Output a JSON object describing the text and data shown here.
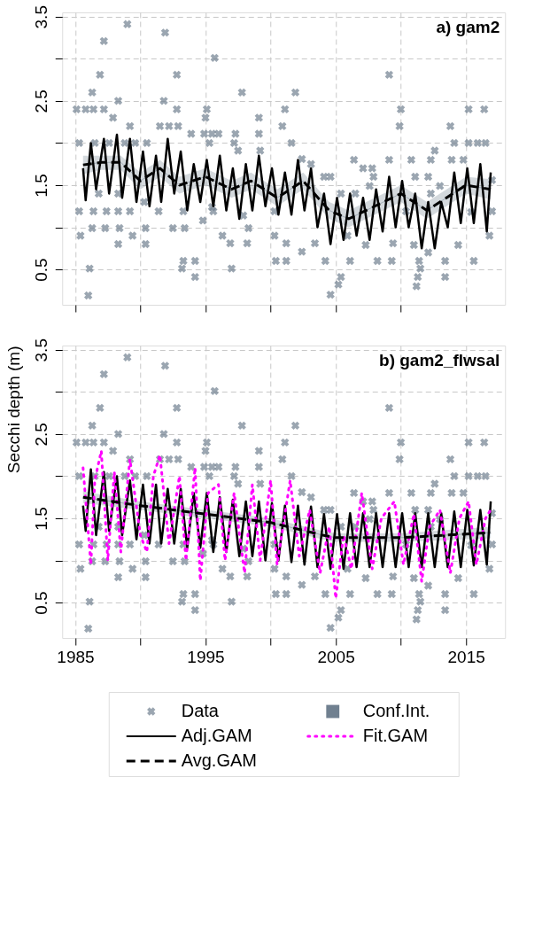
{
  "chart_data": [
    {
      "type": "line",
      "title": "a) gam2",
      "xlim": [
        1984,
        2018
      ],
      "ylim": [
        0.08,
        3.55
      ],
      "xticks": [
        1985,
        {
          "value": 1990,
          "label": null
        },
        1995,
        {
          "value": 2000,
          "label": null
        },
        2005,
        {
          "value": 2010,
          "label": null
        },
        2015
      ],
      "yticks": [
        0.5,
        {
          "value": 1,
          "label": null
        },
        1.5,
        {
          "value": 2,
          "label": null
        },
        2.5,
        {
          "value": 3,
          "label": null
        },
        3.5
      ],
      "tick_labels": "y",
      "grid": true,
      "series": [
        {
          "type": "scatter",
          "marker": "cross",
          "color": "#708090",
          "x": [
            1989.0,
            1991.9,
            1987.2,
            1995.7,
            1986.9,
            1992.8,
            2009.1,
            1986.3,
            1997.8,
            2001.9,
            1988.3,
            1991.8,
            1985.1,
            1985.8,
            1986.4,
            1987.2,
            1992.8,
            1995.1,
            2001.1,
            2010.0,
            2015.2,
            2016.4,
            1987.9,
            1995.0,
            1999.1,
            1989.2,
            1991.5,
            1992.2,
            1992.9,
            2000.9,
            2009.9,
            2013.8,
            1993.9,
            1994.9,
            1995.5,
            1996.0,
            1997.3,
            1999.1,
            1985.3,
            1990.5,
            1986.5,
            1987.6,
            1988.8,
            1989.6,
            1995.3,
            1997.2,
            2001.6,
            2014.1,
            2015.2,
            2015.9,
            2016.5,
            2012.6,
            1997.5,
            1999.2,
            2006.4,
            2009.1,
            2010.8,
            2012.3,
            2013.9,
            2014.8,
            2007.1,
            2007.8,
            2002.4,
            2003.1,
            2004.1,
            2004.6,
            2011.1,
            2012.1,
            2007.9,
            2017.0,
            2013.0,
            2007.6,
            1986.8,
            1988.3,
            1990.3,
            2005.4,
            2006.5,
            2012.3,
            1985.3,
            1986.4,
            1987.4,
            1988.3,
            1989.2,
            1991.4,
            1993.3,
            1995.6,
            2017.0,
            2015.4,
            1995.5,
            2000.3,
            1997.9,
            2010.4,
            1986.3,
            1987.3,
            1988.4,
            1989.4,
            1985.4,
            1990.4,
            1992.5,
            1993.4,
            1994.8,
            1996.3,
            1996.9,
            1998.3,
            1998.2,
            1988.3,
            1990.4,
            2000.3,
            2001.2,
            2002.4,
            2003.4,
            2005.9,
            2007.3,
            2009.4,
            2011.0,
            2012.1,
            2014.4,
            2016.8,
            1993.3,
            1994.2,
            1993.2,
            1997.0,
            1994.2,
            2000.4,
            2001.2,
            2004.2,
            2006.1,
            2008.2,
            2009.3,
            2011.4,
            2013.4,
            2015.6,
            1986.1,
            2005.4,
            2005.2,
            2004.6,
            2011.3,
            2011.2,
            2013.4,
            2011.5,
            1986.0
          ],
          "values": [
            3.41,
            3.31,
            3.21,
            3.01,
            2.81,
            2.81,
            2.81,
            2.6,
            2.6,
            2.6,
            2.5,
            2.5,
            2.4,
            2.4,
            2.4,
            2.4,
            2.4,
            2.4,
            2.4,
            2.4,
            2.4,
            2.4,
            2.3,
            2.3,
            2.3,
            2.2,
            2.2,
            2.2,
            2.2,
            2.2,
            2.2,
            2.2,
            2.11,
            2.11,
            2.11,
            2.11,
            2.11,
            2.11,
            2.0,
            2.0,
            2.0,
            2.0,
            2.0,
            2.0,
            2.0,
            2.0,
            2.0,
            2.0,
            2.0,
            2.0,
            2.0,
            1.91,
            1.91,
            1.91,
            1.8,
            1.8,
            1.8,
            1.8,
            1.8,
            1.8,
            1.7,
            1.7,
            1.81,
            1.75,
            1.6,
            1.6,
            1.6,
            1.6,
            1.6,
            1.56,
            1.49,
            1.49,
            1.4,
            1.4,
            1.3,
            1.4,
            1.4,
            1.4,
            1.19,
            1.19,
            1.19,
            1.19,
            1.19,
            1.19,
            1.19,
            1.19,
            1.19,
            1.18,
            1.24,
            1.19,
            1.14,
            1.19,
            0.99,
            0.99,
            0.99,
            0.9,
            0.9,
            0.99,
            0.99,
            0.99,
            1.08,
            0.9,
            0.81,
            0.99,
            0.81,
            0.8,
            0.8,
            0.9,
            0.81,
            0.71,
            0.81,
            0.9,
            0.79,
            0.81,
            0.79,
            0.7,
            0.79,
            0.9,
            0.6,
            0.6,
            0.51,
            0.51,
            0.41,
            0.6,
            0.6,
            0.6,
            0.6,
            0.6,
            0.6,
            0.6,
            0.6,
            0.6,
            0.51,
            0.41,
            0.32,
            0.2,
            0.41,
            0.3,
            0.41,
            0.51,
            0.19
          ]
        },
        {
          "type": "line",
          "line_style": "solid",
          "color": "#708090",
          "x": [
            1985.6,
            1987,
            1988.5,
            1990,
            1991.5,
            1993,
            1995,
            1997,
            1998.5,
            2000.5,
            2002.5,
            2004.5,
            2006,
            2008,
            2010,
            2012,
            2013,
            2015,
            2016.9
          ],
          "values": [
            1.74,
            1.77,
            1.77,
            1.55,
            1.7,
            1.5,
            1.6,
            1.45,
            1.55,
            1.35,
            1.55,
            1.2,
            1.1,
            1.25,
            1.4,
            1.2,
            1.3,
            1.5,
            1.45
          ],
          "lower": [
            1.63,
            1.68,
            1.68,
            1.45,
            1.6,
            1.4,
            1.5,
            1.35,
            1.45,
            1.25,
            1.45,
            1.1,
            1.0,
            1.15,
            1.3,
            1.1,
            1.2,
            1.4,
            1.33
          ],
          "upper": [
            1.85,
            1.85,
            1.85,
            1.65,
            1.8,
            1.6,
            1.7,
            1.55,
            1.65,
            1.45,
            1.65,
            1.3,
            1.2,
            1.35,
            1.5,
            1.3,
            1.4,
            1.6,
            1.57
          ]
        },
        {
          "line_style": "solid",
          "color": "#000000",
          "x": [
            1985.6,
            1985.8,
            1986.2,
            1986.6,
            1987.2,
            1987.6,
            1988.2,
            1988.6,
            1989.2,
            1989.7,
            1990.2,
            1990.7,
            1991.2,
            1991.6,
            1992.1,
            1992.6,
            1993.1,
            1993.6,
            1994.1,
            1994.6,
            1995.1,
            1995.6,
            1996.1,
            1996.6,
            1997.1,
            1997.6,
            1998.1,
            1998.6,
            1999.1,
            1999.6,
            2000.1,
            2000.6,
            2001.1,
            2001.6,
            2002.1,
            2002.6,
            2003.1,
            2003.6,
            2004.1,
            2004.6,
            2005.1,
            2005.6,
            2006.1,
            2006.6,
            2007.1,
            2007.6,
            2008.1,
            2008.6,
            2009.1,
            2009.6,
            2010.1,
            2010.6,
            2011.1,
            2011.6,
            2012.1,
            2012.6,
            2013.1,
            2013.6,
            2014.1,
            2014.6,
            2015.1,
            2015.6,
            2016.1,
            2016.6,
            2016.9
          ],
          "values": [
            1.7,
            1.32,
            2.0,
            1.45,
            2.05,
            1.4,
            2.1,
            1.35,
            2.05,
            1.3,
            1.9,
            1.25,
            1.85,
            1.3,
            2.05,
            1.4,
            1.9,
            1.2,
            1.75,
            1.3,
            1.8,
            1.25,
            1.85,
            1.2,
            1.7,
            1.1,
            1.75,
            1.2,
            1.85,
            1.25,
            1.7,
            1.15,
            1.65,
            1.15,
            1.8,
            1.2,
            1.7,
            1.0,
            1.4,
            0.8,
            1.35,
            0.85,
            1.4,
            0.9,
            1.35,
            0.85,
            1.45,
            0.95,
            1.6,
            1.0,
            1.55,
            1.0,
            1.4,
            0.75,
            1.3,
            0.75,
            1.3,
            1.0,
            1.65,
            1.05,
            1.7,
            1.05,
            1.75,
            0.95,
            1.65
          ]
        },
        {
          "line_style": "dashed",
          "color": "#000000",
          "x": [
            1985.6,
            1987,
            1988.5,
            1990,
            1991.5,
            1993,
            1995,
            1997,
            1998.5,
            2000.5,
            2002.5,
            2004.5,
            2006,
            2008,
            2010,
            2012,
            2013,
            2015,
            2016.9
          ],
          "values": [
            1.74,
            1.77,
            1.77,
            1.55,
            1.7,
            1.5,
            1.6,
            1.45,
            1.55,
            1.35,
            1.55,
            1.2,
            1.1,
            1.25,
            1.4,
            1.2,
            1.3,
            1.5,
            1.45
          ]
        }
      ]
    },
    {
      "type": "line",
      "title": "b) gam2_flwsal",
      "ylabel": "Secchi depth (m)",
      "xlim": [
        1984,
        2018
      ],
      "ylim": [
        0.08,
        3.55
      ],
      "xticks": [
        1985,
        {
          "value": 1990,
          "label": null
        },
        1995,
        {
          "value": 2000,
          "label": null
        },
        2005,
        {
          "value": 2010,
          "label": null
        },
        2015
      ],
      "yticks": [
        0.5,
        {
          "value": 1,
          "label": null
        },
        1.5,
        {
          "value": 2,
          "label": null
        },
        2.5,
        {
          "value": 3,
          "label": null
        },
        3.5
      ],
      "grid": true,
      "legend": "bottom",
      "series": [
        {
          "name": "Data",
          "type": "scatter",
          "marker": "cross",
          "color": "#708090",
          "x": [
            1989.0,
            1991.9,
            1987.2,
            1995.7,
            1986.9,
            1992.8,
            2009.1,
            1986.3,
            1997.8,
            2001.9,
            1988.3,
            1991.8,
            1985.1,
            1985.8,
            1986.4,
            1987.2,
            1992.8,
            1995.1,
            2001.1,
            2010.0,
            2015.2,
            2016.4,
            1987.9,
            1995.0,
            1999.1,
            1989.2,
            1991.5,
            1992.2,
            1992.9,
            2000.9,
            2009.9,
            2013.8,
            1993.9,
            1994.9,
            1995.5,
            1996.0,
            1997.3,
            1999.1,
            1985.3,
            1990.5,
            1986.5,
            1987.6,
            1988.8,
            1989.6,
            1995.3,
            1997.2,
            2001.6,
            2014.1,
            2015.2,
            2015.9,
            2016.5,
            2012.6,
            1997.5,
            1999.2,
            2006.4,
            2009.1,
            2010.8,
            2012.3,
            2013.9,
            2014.8,
            2007.1,
            2007.8,
            2002.4,
            2003.1,
            2004.1,
            2004.6,
            2011.1,
            2012.1,
            2007.9,
            2017.0,
            2013.0,
            2007.6,
            1986.8,
            1988.3,
            1990.3,
            2005.4,
            2006.5,
            2012.3,
            1985.3,
            1986.4,
            1987.4,
            1988.3,
            1989.2,
            1991.4,
            1993.3,
            1995.6,
            2017.0,
            2015.4,
            1995.5,
            2000.3,
            1997.9,
            2010.4,
            1986.3,
            1987.3,
            1988.4,
            1989.4,
            1985.4,
            1990.4,
            1992.5,
            1993.4,
            1994.8,
            1996.3,
            1996.9,
            1998.3,
            1998.2,
            1988.3,
            1990.4,
            2000.3,
            2001.2,
            2002.4,
            2003.4,
            2005.9,
            2007.3,
            2009.4,
            2011.0,
            2012.1,
            2014.4,
            2016.8,
            1993.3,
            1994.2,
            1993.2,
            1997.0,
            1994.2,
            2000.4,
            2001.2,
            2004.2,
            2006.1,
            2008.2,
            2009.3,
            2011.4,
            2013.4,
            2015.6,
            1986.1,
            2005.4,
            2005.2,
            2004.6,
            2011.3,
            2011.2,
            2013.4,
            2011.5,
            1986.0
          ],
          "values": [
            3.41,
            3.31,
            3.21,
            3.01,
            2.81,
            2.81,
            2.81,
            2.6,
            2.6,
            2.6,
            2.5,
            2.5,
            2.4,
            2.4,
            2.4,
            2.4,
            2.4,
            2.4,
            2.4,
            2.4,
            2.4,
            2.4,
            2.3,
            2.3,
            2.3,
            2.2,
            2.2,
            2.2,
            2.2,
            2.2,
            2.2,
            2.2,
            2.11,
            2.11,
            2.11,
            2.11,
            2.11,
            2.11,
            2.0,
            2.0,
            2.0,
            2.0,
            2.0,
            2.0,
            2.0,
            2.0,
            2.0,
            2.0,
            2.0,
            2.0,
            2.0,
            1.91,
            1.91,
            1.91,
            1.8,
            1.8,
            1.8,
            1.8,
            1.8,
            1.8,
            1.7,
            1.7,
            1.81,
            1.75,
            1.6,
            1.6,
            1.6,
            1.6,
            1.6,
            1.56,
            1.49,
            1.49,
            1.4,
            1.4,
            1.3,
            1.4,
            1.4,
            1.4,
            1.19,
            1.19,
            1.19,
            1.19,
            1.19,
            1.19,
            1.19,
            1.19,
            1.19,
            1.18,
            1.24,
            1.19,
            1.14,
            1.19,
            0.99,
            0.99,
            0.99,
            0.9,
            0.9,
            0.99,
            0.99,
            0.99,
            1.08,
            0.9,
            0.81,
            0.99,
            0.81,
            0.8,
            0.8,
            0.9,
            0.81,
            0.71,
            0.81,
            0.9,
            0.79,
            0.81,
            0.79,
            0.7,
            0.79,
            0.9,
            0.6,
            0.6,
            0.51,
            0.51,
            0.41,
            0.6,
            0.6,
            0.6,
            0.6,
            0.6,
            0.6,
            0.6,
            0.6,
            0.6,
            0.51,
            0.41,
            0.32,
            0.2,
            0.41,
            0.3,
            0.41,
            0.51,
            0.19
          ]
        },
        {
          "name": "Conf.Int.",
          "type": "line",
          "line_style": "solid",
          "color": "#708090",
          "x": [
            1985.6,
            1990,
            1995,
            2000,
            2004,
            2005,
            2010,
            2016.9
          ],
          "values": [
            1.75,
            1.65,
            1.55,
            1.45,
            1.3,
            1.27,
            1.27,
            1.33
          ],
          "lower": [
            1.68,
            1.6,
            1.5,
            1.4,
            1.25,
            1.22,
            1.22,
            1.26
          ],
          "upper": [
            1.82,
            1.7,
            1.6,
            1.5,
            1.35,
            1.32,
            1.32,
            1.4
          ]
        },
        {
          "name": "Adj.GAM",
          "line_style": "solid",
          "color": "#000000",
          "x": [
            1985.6,
            1985.8,
            1986.2,
            1986.6,
            1987.2,
            1987.6,
            1988.2,
            1988.6,
            1989.2,
            1989.7,
            1990.2,
            1990.7,
            1991.2,
            1991.6,
            1992.1,
            1992.6,
            1993.1,
            1993.6,
            1994.1,
            1994.6,
            1995.1,
            1995.6,
            1996.1,
            1996.6,
            1997.1,
            1997.6,
            1998.1,
            1998.6,
            1999.1,
            1999.6,
            2000.1,
            2000.6,
            2001.1,
            2001.6,
            2002.1,
            2002.6,
            2003.1,
            2003.6,
            2004.1,
            2004.6,
            2005.1,
            2005.6,
            2006.1,
            2006.6,
            2007.1,
            2007.6,
            2008.1,
            2008.6,
            2009.1,
            2009.6,
            2010.1,
            2010.6,
            2011.1,
            2011.6,
            2012.1,
            2012.6,
            2013.1,
            2013.6,
            2014.1,
            2014.6,
            2015.1,
            2015.6,
            2016.1,
            2016.6,
            2016.9
          ],
          "values": [
            1.65,
            1.35,
            2.08,
            1.3,
            2.05,
            1.35,
            2.0,
            1.3,
            1.95,
            1.25,
            1.9,
            1.2,
            1.9,
            1.2,
            1.85,
            1.2,
            1.85,
            1.15,
            1.8,
            1.15,
            1.8,
            1.1,
            1.75,
            1.1,
            1.72,
            1.05,
            1.7,
            1.05,
            1.7,
            1.0,
            1.68,
            1.0,
            1.65,
            0.98,
            1.65,
            0.95,
            1.64,
            0.92,
            1.55,
            0.9,
            1.55,
            0.9,
            1.56,
            0.92,
            1.56,
            0.92,
            1.56,
            0.92,
            1.56,
            0.92,
            1.56,
            0.92,
            1.56,
            0.92,
            1.56,
            0.92,
            1.56,
            0.92,
            1.58,
            0.92,
            1.6,
            0.94,
            1.6,
            0.95,
            1.7
          ]
        },
        {
          "name": "Fit.GAM",
          "line_style": "dotted",
          "color": "#ff00ff",
          "x": [
            1985.6,
            1986.2,
            1986.5,
            1987.0,
            1987.5,
            1988.0,
            1988.5,
            1989.2,
            1990.0,
            1990.5,
            1991.0,
            1991.5,
            1992.2,
            1993.0,
            1993.5,
            1994.2,
            1994.6,
            1995.2,
            1996.0,
            1996.5,
            1997.2,
            1998.0,
            1998.6,
            1999.2,
            2000.0,
            2000.5,
            2001.5,
            2002.2,
            2003.0,
            2003.8,
            2004.5,
            2005.0,
            2005.6,
            2006.2,
            2007.0,
            2007.8,
            2008.5,
            2009.5,
            2010.2,
            2011.0,
            2011.6,
            2012.2,
            2013.0,
            2013.8,
            2014.5,
            2015.2,
            2015.8,
            2016.5,
            2016.9
          ],
          "values": [
            2.1,
            0.95,
            1.95,
            2.3,
            1.0,
            2.05,
            1.1,
            2.2,
            1.3,
            1.1,
            2.0,
            2.25,
            1.2,
            2.0,
            1.0,
            2.1,
            0.76,
            1.8,
            1.9,
            1.0,
            1.8,
            0.85,
            1.9,
            1.0,
            1.95,
            0.95,
            1.95,
            1.05,
            1.6,
            0.85,
            1.4,
            0.55,
            1.3,
            0.9,
            1.8,
            0.9,
            1.5,
            1.7,
            0.95,
            1.55,
            0.75,
            1.4,
            1.6,
            0.85,
            1.5,
            1.7,
            0.95,
            1.5,
            1.6
          ]
        },
        {
          "name": "Avg.GAM",
          "line_style": "dashed",
          "color": "#000000",
          "x": [
            1985.6,
            1990,
            1995,
            2000,
            2004,
            2005,
            2010,
            2016.9
          ],
          "values": [
            1.75,
            1.65,
            1.55,
            1.45,
            1.3,
            1.27,
            1.27,
            1.33
          ]
        }
      ]
    }
  ]
}
